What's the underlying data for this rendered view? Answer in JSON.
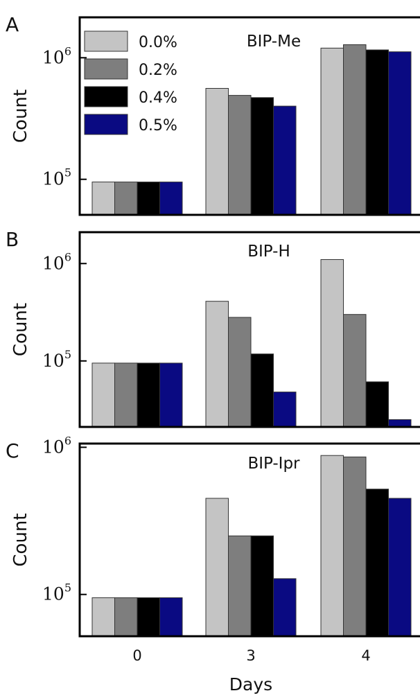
{
  "chart_data": [
    {
      "type": "bar",
      "panel_label": "A",
      "title": "BIP-Me",
      "ylabel": "Count",
      "yscale": "log",
      "ylim": [
        51000,
        2150000
      ],
      "yticks": [
        {
          "base": "10",
          "exp": "5",
          "value": 100000
        },
        {
          "base": "10",
          "exp": "6",
          "value": 1000000
        }
      ],
      "categories": [
        "0",
        "3",
        "4"
      ],
      "series": [
        {
          "name": "0.0%",
          "values": [
            95000,
            560000,
            1200000
          ]
        },
        {
          "name": "0.2%",
          "values": [
            95000,
            490000,
            1280000
          ]
        },
        {
          "name": "0.4%",
          "values": [
            95000,
            470000,
            1160000
          ]
        },
        {
          "name": "0.5%",
          "values": [
            95000,
            400000,
            1120000
          ]
        }
      ],
      "legend": "top-left"
    },
    {
      "type": "bar",
      "panel_label": "B",
      "title": "BIP-H",
      "ylabel": "Count",
      "yscale": "log",
      "ylim": [
        21000,
        2100000
      ],
      "yticks": [
        {
          "base": "10",
          "exp": "5",
          "value": 100000
        },
        {
          "base": "10",
          "exp": "6",
          "value": 1000000
        }
      ],
      "categories": [
        "0",
        "3",
        "4"
      ],
      "series": [
        {
          "name": "0.0%",
          "values": [
            95000,
            410000,
            1100000
          ]
        },
        {
          "name": "0.2%",
          "values": [
            95000,
            280000,
            300000
          ]
        },
        {
          "name": "0.4%",
          "values": [
            95000,
            118000,
            61000
          ]
        },
        {
          "name": "0.5%",
          "values": [
            95000,
            48000,
            25000
          ]
        }
      ]
    },
    {
      "type": "bar",
      "panel_label": "C",
      "title": "BIP-Ipr",
      "ylabel": "Count",
      "yscale": "log",
      "ylim": [
        52000,
        1060000
      ],
      "yticks": [
        {
          "base": "10",
          "exp": "5",
          "value": 100000
        },
        {
          "base": "10",
          "exp": "6",
          "value": 1000000
        }
      ],
      "categories": [
        "0",
        "3",
        "4"
      ],
      "series": [
        {
          "name": "0.0%",
          "values": [
            95000,
            450000,
            880000
          ]
        },
        {
          "name": "0.2%",
          "values": [
            95000,
            250000,
            860000
          ]
        },
        {
          "name": "0.4%",
          "values": [
            95000,
            250000,
            520000
          ]
        },
        {
          "name": "0.5%",
          "values": [
            95000,
            128000,
            450000
          ]
        }
      ],
      "xlabel": "Days"
    }
  ],
  "colors": [
    "#c4c4c4",
    "#7e7e7e",
    "#000000",
    "#0a0a82"
  ],
  "bar_stroke": "#333333"
}
